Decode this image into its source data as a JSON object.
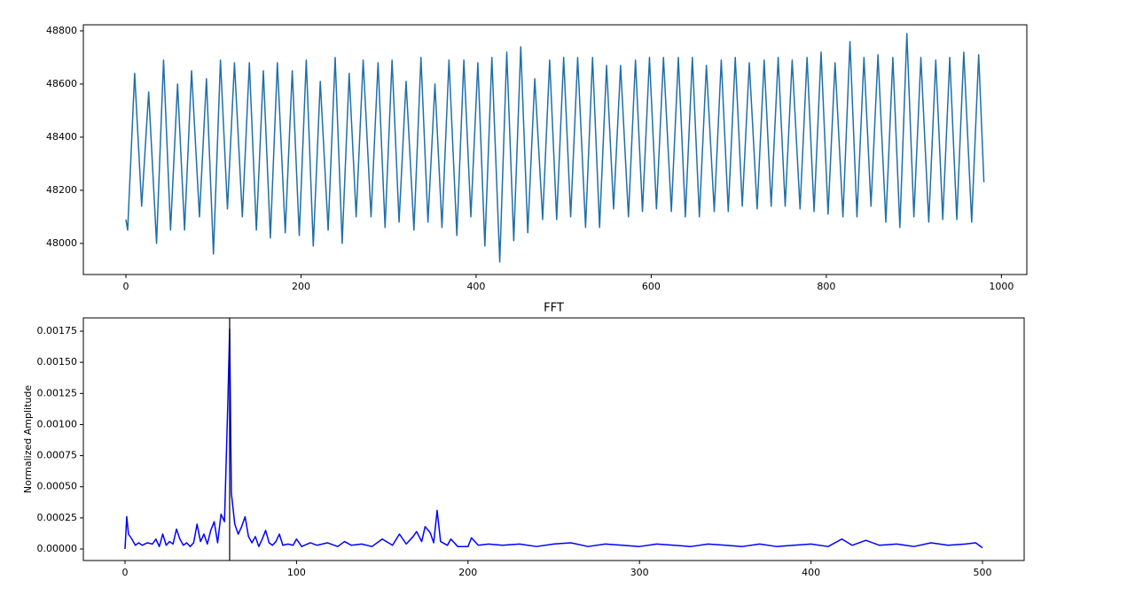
{
  "chart_data": [
    {
      "type": "line",
      "color": "#1f6fa8",
      "xlim": [
        -48.6,
        1029
      ],
      "ylim": [
        47883,
        48823
      ],
      "xticks": [
        0,
        200,
        400,
        600,
        800,
        1000
      ],
      "yticks": [
        48000,
        48200,
        48400,
        48600,
        48800
      ],
      "x": [
        0,
        2,
        10,
        18,
        26,
        35,
        43,
        51,
        59,
        67,
        75,
        84,
        92,
        100,
        108,
        116,
        124,
        133,
        141,
        149,
        157,
        165,
        173,
        182,
        190,
        198,
        206,
        214,
        222,
        231,
        239,
        247,
        255,
        263,
        271,
        280,
        288,
        296,
        304,
        312,
        320,
        329,
        337,
        345,
        353,
        361,
        369,
        378,
        386,
        394,
        402,
        410,
        418,
        427,
        435,
        443,
        451,
        459,
        467,
        476,
        484,
        492,
        500,
        508,
        516,
        525,
        533,
        541,
        549,
        557,
        565,
        574,
        582,
        590,
        598,
        606,
        614,
        623,
        631,
        639,
        647,
        655,
        663,
        672,
        680,
        688,
        696,
        704,
        712,
        721,
        729,
        737,
        745,
        753,
        761,
        770,
        778,
        786,
        794,
        802,
        810,
        819,
        827,
        835,
        843,
        851,
        859,
        868,
        876,
        884,
        892,
        900,
        908,
        917,
        925,
        933,
        941,
        949,
        957,
        966,
        974,
        980
      ],
      "values": [
        48090,
        48050,
        48640,
        48140,
        48570,
        48000,
        48690,
        48050,
        48600,
        48050,
        48650,
        48100,
        48620,
        47960,
        48690,
        48130,
        48680,
        48100,
        48680,
        48050,
        48650,
        48020,
        48680,
        48040,
        48650,
        48030,
        48690,
        47990,
        48610,
        48050,
        48700,
        48000,
        48640,
        48100,
        48690,
        48100,
        48680,
        48060,
        48690,
        48080,
        48610,
        48050,
        48700,
        48080,
        48600,
        48060,
        48690,
        48030,
        48690,
        48100,
        48680,
        47990,
        48700,
        47930,
        48720,
        48010,
        48740,
        48040,
        48620,
        48090,
        48690,
        48090,
        48700,
        48100,
        48700,
        48060,
        48700,
        48060,
        48670,
        48130,
        48670,
        48100,
        48690,
        48120,
        48700,
        48130,
        48700,
        48120,
        48700,
        48100,
        48700,
        48100,
        48670,
        48120,
        48690,
        48120,
        48700,
        48140,
        48680,
        48130,
        48690,
        48140,
        48700,
        48140,
        48690,
        48130,
        48700,
        48120,
        48720,
        48110,
        48680,
        48100,
        48760,
        48100,
        48700,
        48140,
        48710,
        48080,
        48700,
        48060,
        48790,
        48100,
        48700,
        48080,
        48690,
        48090,
        48700,
        48090,
        48720,
        48080,
        48710,
        48230
      ]
    },
    {
      "type": "line",
      "title": "FFT",
      "ylabel": "Normalized Amplitude",
      "color": "#0000ff",
      "marker_x": 61,
      "marker_color": "#000000",
      "xlim": [
        -24.3,
        524.3
      ],
      "ylim": [
        -9.25e-05,
        0.001857
      ],
      "xticks": [
        0,
        100,
        200,
        300,
        400,
        500
      ],
      "yticks": [
        {
          "value": 0,
          "label": "0.00000"
        },
        {
          "value": 0.00025,
          "label": "0.00025"
        },
        {
          "value": 0.0005,
          "label": "0.00050"
        },
        {
          "value": 0.00075,
          "label": "0.00075"
        },
        {
          "value": 0.001,
          "label": "0.00100"
        },
        {
          "value": 0.00125,
          "label": "0.00125"
        },
        {
          "value": 0.0015,
          "label": "0.00150"
        },
        {
          "value": 0.00175,
          "label": "0.00175"
        }
      ],
      "x": [
        0,
        1,
        2,
        4,
        6,
        8,
        10,
        13,
        16,
        18,
        20,
        22,
        24,
        26,
        28,
        30,
        32,
        34,
        36,
        38,
        40,
        42,
        44,
        46,
        48,
        50,
        52,
        54,
        56,
        58,
        60,
        61,
        62,
        64,
        66,
        68,
        70,
        72,
        74,
        76,
        78,
        80,
        82,
        84,
        86,
        88,
        90,
        92,
        95,
        98,
        100,
        103,
        108,
        112,
        118,
        124,
        128,
        132,
        138,
        144,
        150,
        156,
        160,
        164,
        168,
        170,
        173,
        175,
        178,
        180,
        182,
        184,
        188,
        190,
        194,
        200,
        202,
        206,
        212,
        220,
        230,
        240,
        250,
        260,
        270,
        280,
        290,
        300,
        310,
        320,
        330,
        340,
        350,
        360,
        370,
        380,
        390,
        400,
        410,
        418,
        424,
        432,
        440,
        450,
        460,
        470,
        480,
        490,
        496,
        500
      ],
      "values": [
        0,
        0.00026,
        0.00012,
        8e-05,
        3e-05,
        5e-05,
        3e-05,
        5e-05,
        4e-05,
        8e-05,
        2e-05,
        0.00012,
        3e-05,
        6e-05,
        4e-05,
        0.00016,
        8e-05,
        3e-05,
        5e-05,
        2e-05,
        5e-05,
        0.0002,
        6e-05,
        0.00012,
        4e-05,
        0.00015,
        0.00022,
        5e-05,
        0.00028,
        0.00022,
        0.0012,
        0.00177,
        0.00045,
        0.0002,
        0.00012,
        0.00018,
        0.00026,
        0.0001,
        5e-05,
        0.0001,
        2e-05,
        8e-05,
        0.00015,
        5e-05,
        3e-05,
        6e-05,
        0.00012,
        3e-05,
        4e-05,
        3e-05,
        8e-05,
        2e-05,
        5e-05,
        3e-05,
        5e-05,
        2e-05,
        6e-05,
        3e-05,
        4e-05,
        2e-05,
        8e-05,
        3e-05,
        0.00012,
        4e-05,
        0.0001,
        0.00014,
        6e-05,
        0.00018,
        0.00013,
        5e-05,
        0.00031,
        6e-05,
        3e-05,
        8e-05,
        2e-05,
        2e-05,
        9e-05,
        3e-05,
        4e-05,
        3e-05,
        4e-05,
        2e-05,
        4e-05,
        5e-05,
        2e-05,
        4e-05,
        3e-05,
        2e-05,
        4e-05,
        3e-05,
        2e-05,
        4e-05,
        3e-05,
        2e-05,
        4e-05,
        2e-05,
        3e-05,
        4e-05,
        2e-05,
        8e-05,
        3e-05,
        7e-05,
        3e-05,
        4e-05,
        2e-05,
        5e-05,
        3e-05,
        4e-05,
        5e-05,
        1e-05
      ]
    }
  ]
}
